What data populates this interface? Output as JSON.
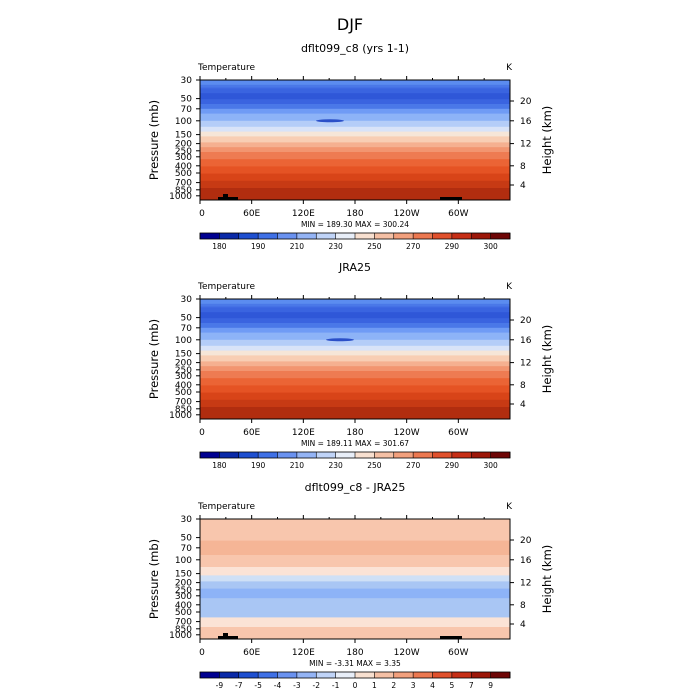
{
  "figure": {
    "title": "DJF"
  },
  "chart_data": [
    {
      "type": "heatmap",
      "title": "dflt099_c8 (yrs 1-1)",
      "subtitle_left": "Temperature",
      "subtitle_right": "K",
      "xlabel": "",
      "ylabel": "Pressure (mb)",
      "ylabel_right": "Height (km)",
      "x_ticks": [
        "0",
        "60E",
        "120E",
        "180",
        "120W",
        "60W"
      ],
      "y_ticks": [
        "30",
        "50",
        "70",
        "100",
        "150",
        "200",
        "250",
        "300",
        "400",
        "500",
        "700",
        "850",
        "1000"
      ],
      "y_right_ticks": [
        "20",
        "16",
        "12",
        "8",
        "4"
      ],
      "stats": "MIN = 189.30   MAX = 300.24",
      "levels": [
        "180",
        "190",
        "210",
        "230",
        "250",
        "270",
        "290",
        "300"
      ],
      "band_fracs": [
        0.04,
        0.06,
        0.07,
        0.11,
        0.16,
        0.2,
        0.24,
        0.28,
        0.34,
        0.39,
        0.43,
        0.47,
        0.52,
        0.56,
        0.6,
        0.66,
        0.72,
        0.78,
        0.84,
        0.9,
        1.0
      ],
      "band_colors": [
        "#5b8cf0",
        "#4a78e8",
        "#4470e6",
        "#3a64e0",
        "#2f57d8",
        "#3a64e0",
        "#4a78e8",
        "#6f9bf5",
        "#8db3f7",
        "#b4cdf8",
        "#d8e3f8",
        "#f6e6d8",
        "#f8ceb4",
        "#f5b090",
        "#f29570",
        "#ee7b52",
        "#eb6435",
        "#e55324",
        "#d84418",
        "#c73a14",
        "#b12d0f"
      ],
      "has_topography": true
    },
    {
      "type": "heatmap",
      "title": "JRA25",
      "subtitle_left": "Temperature",
      "subtitle_right": "K",
      "xlabel": "",
      "ylabel": "Pressure (mb)",
      "ylabel_right": "Height (km)",
      "x_ticks": [
        "0",
        "60E",
        "120E",
        "180",
        "120W",
        "60W"
      ],
      "y_ticks": [
        "30",
        "50",
        "70",
        "100",
        "150",
        "200",
        "250",
        "300",
        "400",
        "500",
        "700",
        "850",
        "1000"
      ],
      "y_right_ticks": [
        "20",
        "16",
        "12",
        "8",
        "4"
      ],
      "stats": "MIN = 189.11   MAX = 301.67",
      "levels": [
        "180",
        "190",
        "210",
        "230",
        "250",
        "270",
        "290",
        "300"
      ],
      "band_fracs": [
        0.04,
        0.06,
        0.07,
        0.11,
        0.16,
        0.2,
        0.24,
        0.28,
        0.34,
        0.39,
        0.43,
        0.47,
        0.52,
        0.56,
        0.6,
        0.66,
        0.72,
        0.78,
        0.84,
        0.9,
        1.0
      ],
      "band_colors": [
        "#5b8cf0",
        "#4a78e8",
        "#4470e6",
        "#3a64e0",
        "#2f57d8",
        "#3a64e0",
        "#4a78e8",
        "#6f9bf5",
        "#8db3f7",
        "#b4cdf8",
        "#d8e3f8",
        "#f6e6d8",
        "#f8ceb4",
        "#f5b090",
        "#f29570",
        "#ee7b52",
        "#eb6435",
        "#e55324",
        "#d84418",
        "#c73a14",
        "#b12d0f"
      ],
      "has_topography": false
    },
    {
      "type": "heatmap",
      "title": "dflt099_c8 - JRA25",
      "subtitle_left": "Temperature",
      "subtitle_right": "K",
      "xlabel": "",
      "ylabel": "Pressure (mb)",
      "ylabel_right": "Height (km)",
      "x_ticks": [
        "0",
        "60E",
        "120E",
        "180",
        "120W",
        "60W"
      ],
      "y_ticks": [
        "30",
        "50",
        "70",
        "100",
        "150",
        "200",
        "250",
        "300",
        "400",
        "500",
        "700",
        "850",
        "1000"
      ],
      "y_right_ticks": [
        "20",
        "16",
        "12",
        "8",
        "4"
      ],
      "stats": "MIN =  -3.31   MAX =    3.35",
      "levels": [
        "-9",
        "-7",
        "-5",
        "-4",
        "-3",
        "-2",
        "-1",
        "0",
        "1",
        "2",
        "3",
        "4",
        "5",
        "7",
        "9"
      ],
      "band_fracs": [
        0.18,
        0.3,
        0.4,
        0.47,
        0.52,
        0.58,
        0.66,
        0.82,
        0.9,
        1.0
      ],
      "band_colors": [
        "#f8c6ad",
        "#f5b596",
        "#f8c6ad",
        "#fbe3d6",
        "#cfe0f6",
        "#a9c6f4",
        "#8db3f7",
        "#a9c6f4",
        "#fbe3d6",
        "#f8c6ad"
      ],
      "has_topography": true
    }
  ],
  "colors": {
    "diverging_colorbar": [
      "#000090",
      "#0a2aa8",
      "#1e4fd0",
      "#3f70e6",
      "#6a92f0",
      "#94b4f5",
      "#c0d4f8",
      "#e8eef8",
      "#f8e0d0",
      "#f5c0a5",
      "#f2a07d",
      "#ec7850",
      "#e0502c",
      "#c62e15",
      "#9c1608",
      "#6e0606"
    ],
    "temperature_colorbar": [
      "#000090",
      "#0a2aa8",
      "#1e4fd0",
      "#3f70e6",
      "#6a92f0",
      "#94b4f5",
      "#c0d4f8",
      "#e8eef8",
      "#f8e0d0",
      "#f5c0a5",
      "#f2a07d",
      "#ec7850",
      "#e0502c",
      "#c62e15",
      "#9c1608",
      "#6e0606"
    ]
  }
}
